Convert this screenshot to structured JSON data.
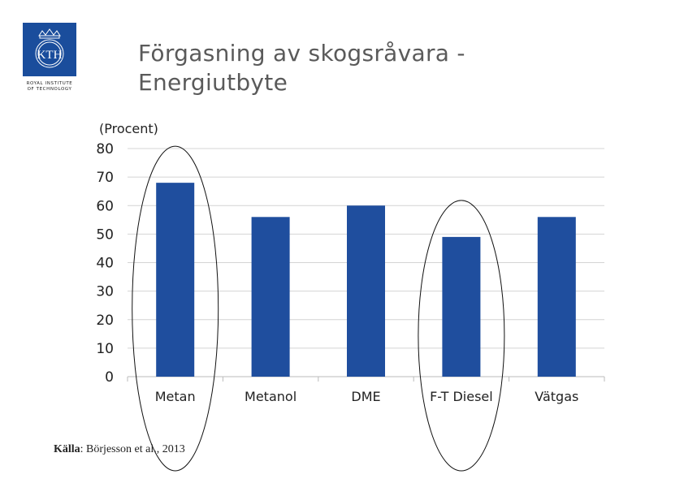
{
  "header": {
    "title_line1": "Förgasning av skogsråvara -",
    "title_line2": "Energiutbyte"
  },
  "logo": {
    "text": "KTH",
    "subtitle_line1": "ROYAL INSTITUTE",
    "subtitle_line2": "OF TECHNOLOGY",
    "color": "#1a4d9c",
    "icon": "kth-crest-icon"
  },
  "source": {
    "label": "Källa",
    "text": ": Börjesson et al., 2013"
  },
  "chart_data": {
    "type": "bar",
    "ylabel": "(Procent)",
    "categories": [
      "Metan",
      "Metanol",
      "DME",
      "F-T Diesel",
      "Vätgas"
    ],
    "values": [
      68,
      56,
      60,
      49,
      56
    ],
    "ylim": [
      0,
      80
    ],
    "yticks": [
      0,
      10,
      20,
      30,
      40,
      50,
      60,
      70,
      80
    ],
    "grid": true,
    "bar_color": "#1f4e9e",
    "highlighted": [
      "Metan",
      "F-T Diesel"
    ]
  }
}
